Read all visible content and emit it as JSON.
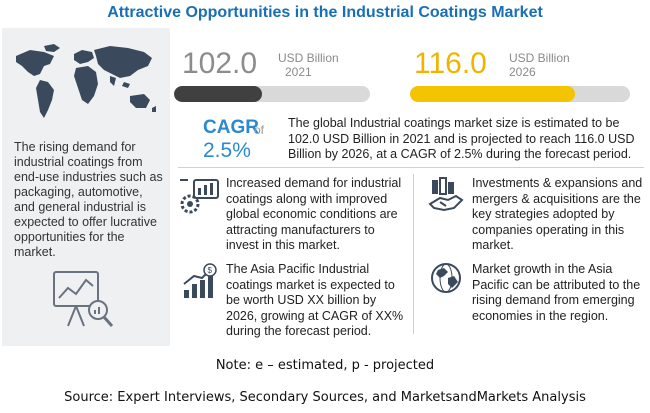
{
  "header": {
    "title": "Attractive Opportunities in the Industrial Coatings Market"
  },
  "left_panel": {
    "map_icon": "world-map-icon",
    "text": "The rising demand for industrial coatings from end-use industries such as packaging, automotive, and general industrial is expected to offer lucrative opportunities for the market.",
    "bottom_icon": "chart-magnifier-icon"
  },
  "stats": {
    "market_2021": {
      "value": "102.0",
      "unit": "USD Billion",
      "year": "2021",
      "bar_fraction": 0.45,
      "color": "#404040"
    },
    "market_2026": {
      "value": "116.0",
      "unit": "USD Billion",
      "year": "2026",
      "bar_fraction": 0.75,
      "color": "#f5c400"
    },
    "cagr": {
      "label": "CAGR",
      "of": "of",
      "value": "2.5%",
      "color": "#2a8ad0"
    },
    "summary": "The global Industrial coatings market size is estimated to be 102.0 USD Billion in 2021 and is projected to reach 116.0 USD Billion by 2026, at a CAGR of 2.5% during the forecast period."
  },
  "cards": [
    {
      "icon": "machinery-gear-icon",
      "text": "Increased demand for industrial coatings along with improved global economic conditions are attracting manufacturers to invest in this market."
    },
    {
      "icon": "investment-handshake-icon",
      "text": "Investments & expansions and mergers & acquisitions are the key strategies adopted by companies operating in this market."
    },
    {
      "icon": "growth-chart-dollar-icon",
      "text": "The Asia Pacific Industrial coatings market is expected to be worth USD XX billion by 2026, growing at CAGR of XX% during the forecast period."
    },
    {
      "icon": "globe-icon",
      "text": "Market growth in the Asia Pacific can be attributed to the rising demand from emerging economies in the region."
    }
  ],
  "footer": {
    "note": "Note: e – estimated, p - projected",
    "source": "Source: Expert Interviews, Secondary Sources, and MarketsandMarkets Analysis"
  }
}
